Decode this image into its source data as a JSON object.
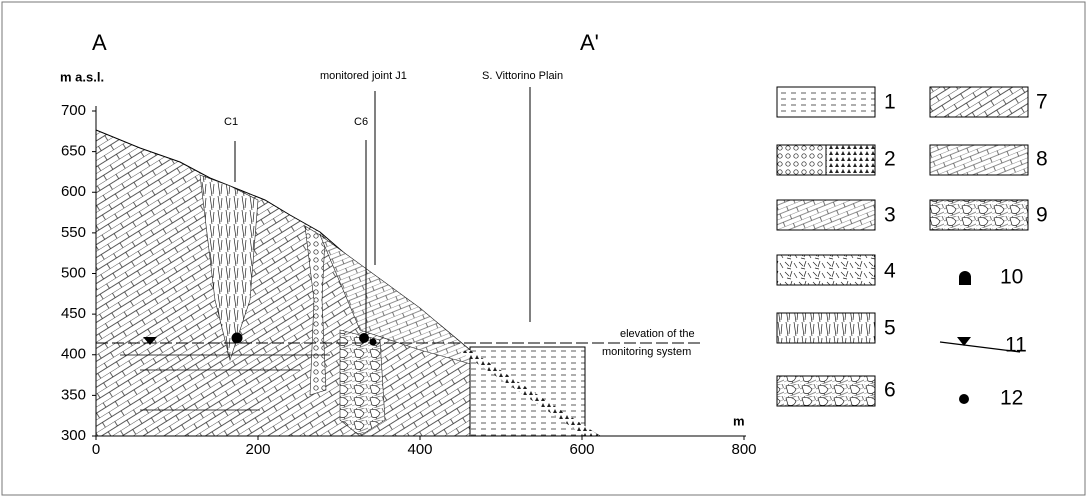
{
  "section": {
    "start": "A",
    "end": "A'"
  },
  "axes": {
    "y": {
      "label": "m  a.s.l.",
      "ticks": [
        300,
        350,
        400,
        450,
        500,
        550,
        600,
        650,
        700
      ]
    },
    "x": {
      "label": "m",
      "ticks": [
        0,
        200,
        400,
        600,
        800
      ]
    }
  },
  "annotations": {
    "c1": "C1",
    "c6": "C6",
    "joint": "monitored  joint J1",
    "plain": "S. Vittorino Plain"
  },
  "monitoring_label": [
    "elevation of the",
    "monitoring system"
  ],
  "legend": [
    "1",
    "2",
    "3",
    "4",
    "5",
    "6",
    "7",
    "8",
    "9",
    "10",
    "11",
    "12"
  ]
}
